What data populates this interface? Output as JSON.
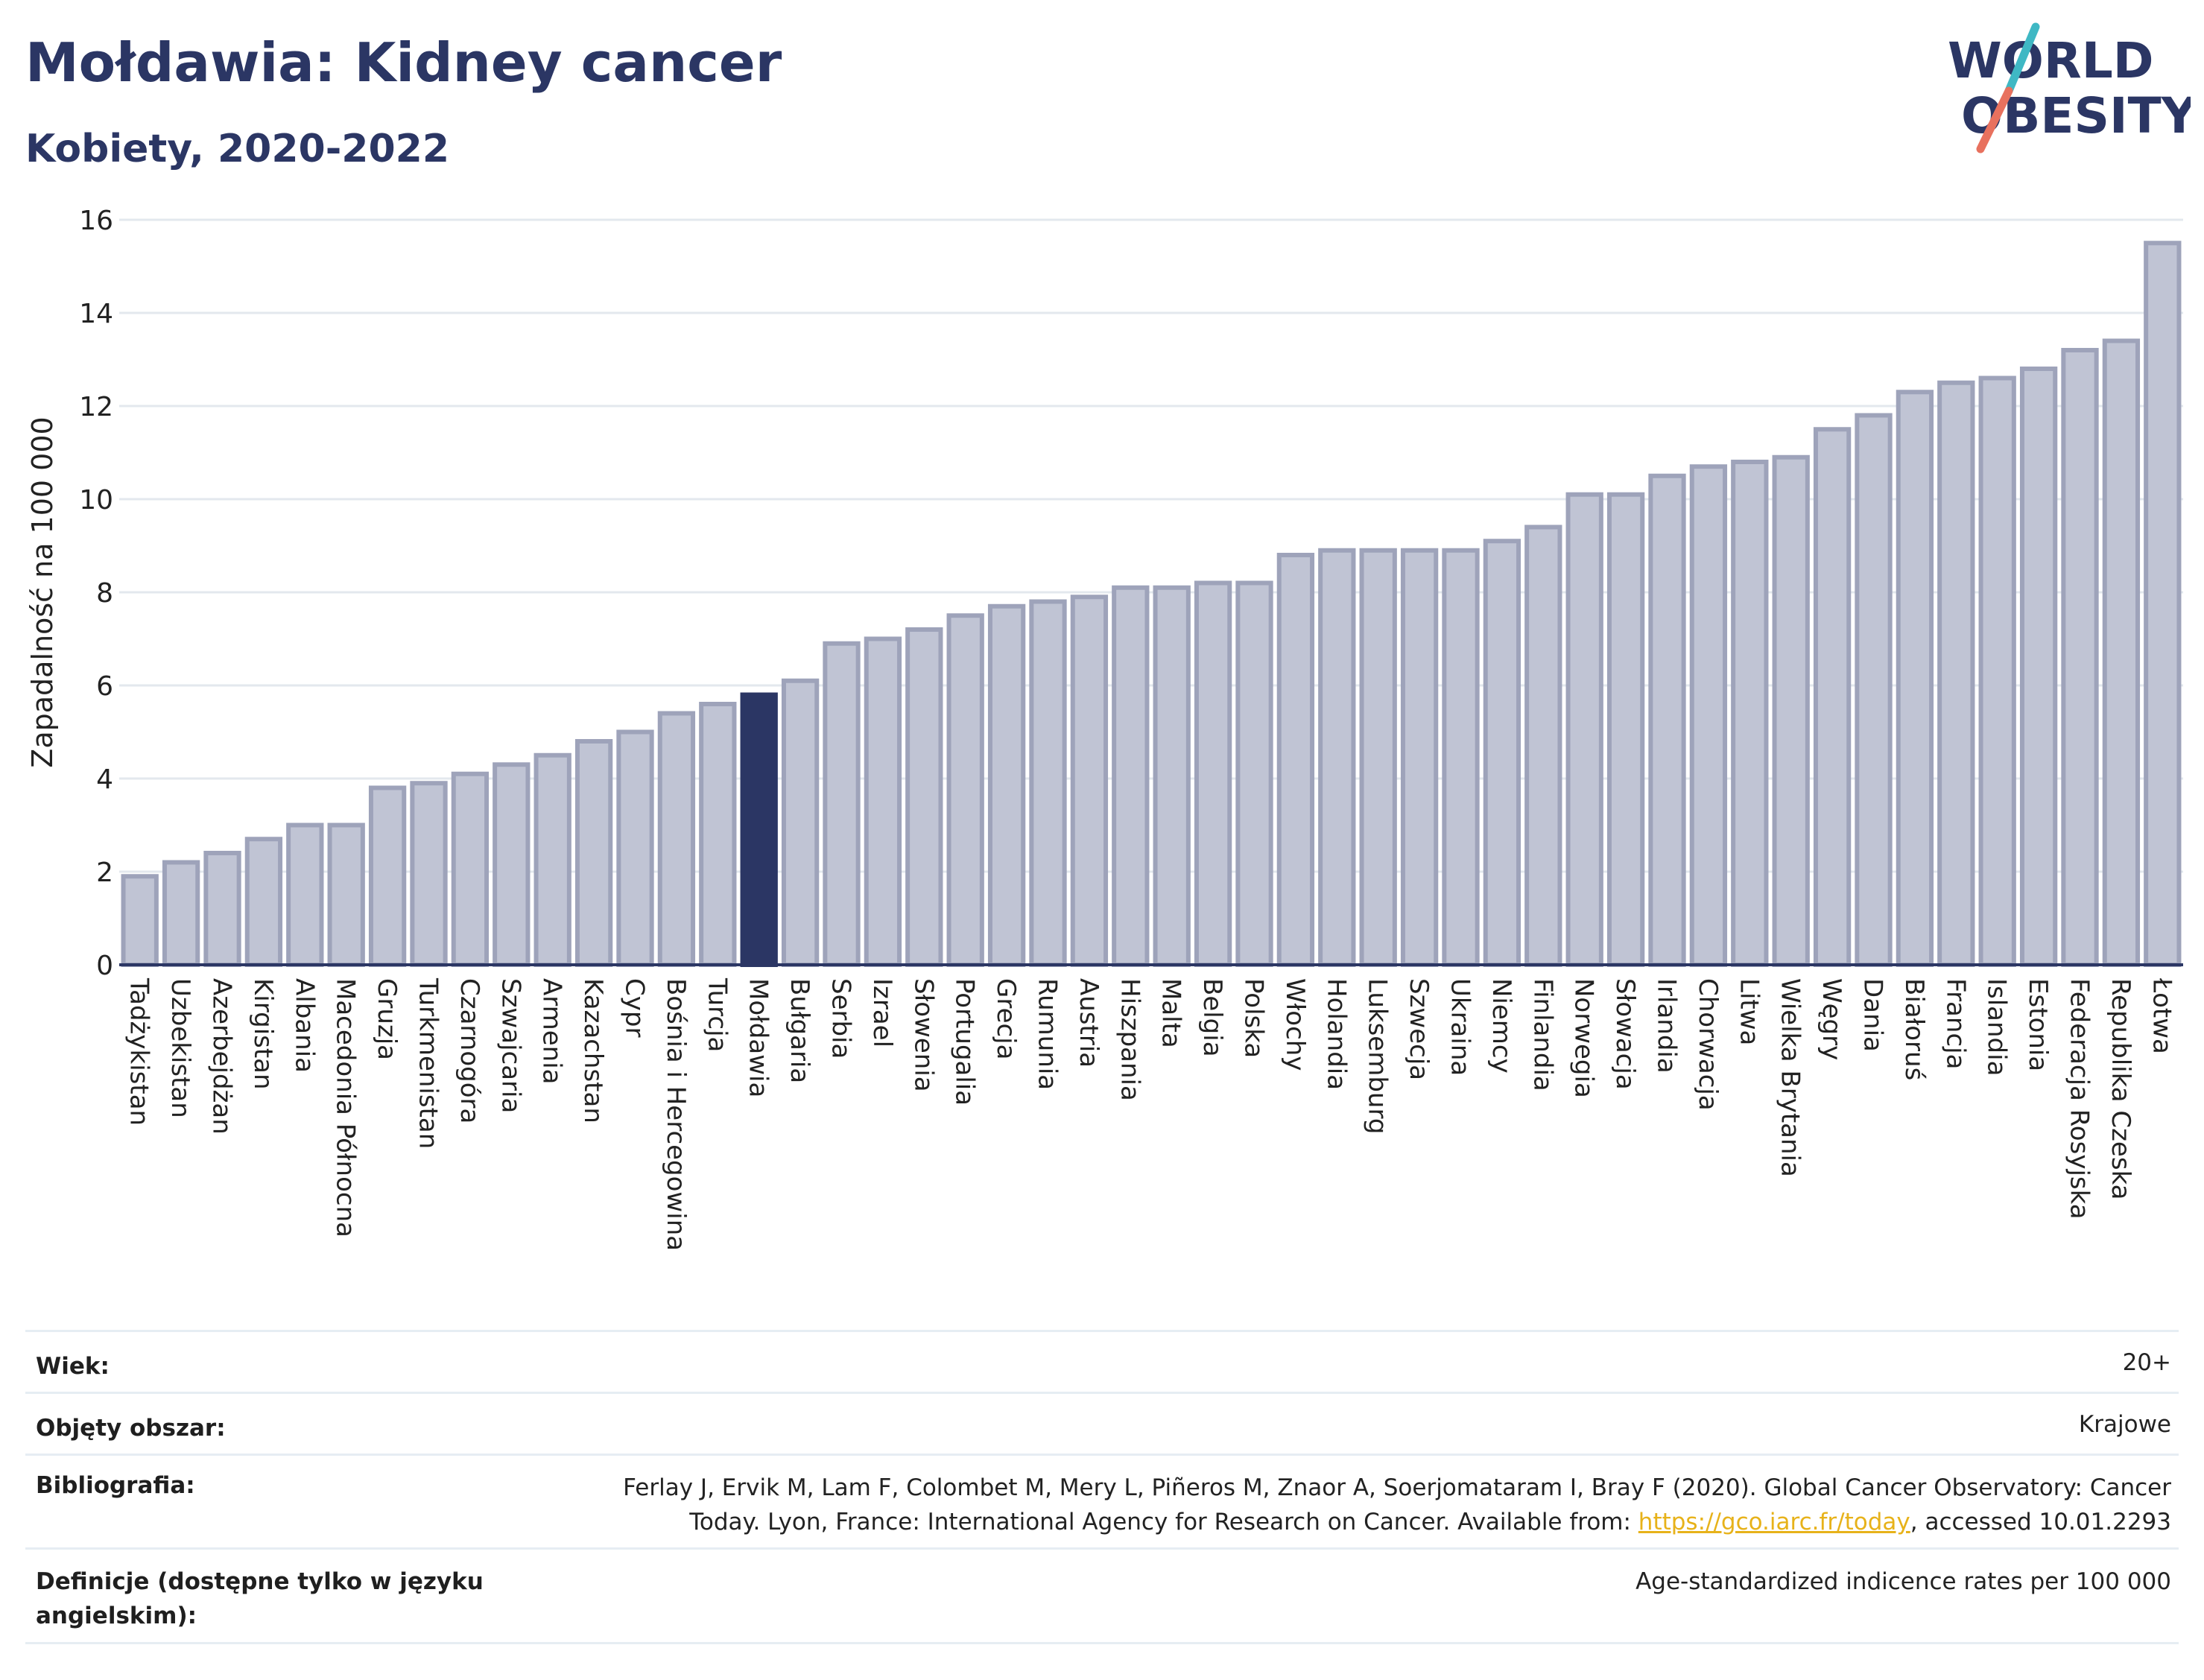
{
  "header": {
    "title": "Mołdawia: Kidney cancer",
    "subtitle": "Kobiety, 2020-2022",
    "logo_line1": "WORLD",
    "logo_line2": "OBESITY"
  },
  "colors": {
    "bar": "#c0c4d4",
    "bar_stroke": "#9ea3ba",
    "highlight": "#2b3664",
    "text": "#2b3664",
    "logo_slash_top": "#3fb8c4",
    "logo_slash_bottom": "#e8715e"
  },
  "chart_data": {
    "type": "bar",
    "ylabel": "Zapadalność na 100 000",
    "ylim": [
      0,
      16
    ],
    "yticks": [
      0,
      2,
      4,
      6,
      8,
      10,
      12,
      14,
      16
    ],
    "grid": true,
    "highlight": "Mołdawia",
    "categories": [
      "Tadżykistan",
      "Uzbekistan",
      "Azerbejdżan",
      "Kirgistan",
      "Albania",
      "Macedonia Północna",
      "Gruzja",
      "Turkmenistan",
      "Czarnogóra",
      "Szwajcaria",
      "Armenia",
      "Kazachstan",
      "Cypr",
      "Bośnia i Hercegowina",
      "Turcja",
      "Mołdawia",
      "Bułgaria",
      "Serbia",
      "Izrael",
      "Słowenia",
      "Portugalia",
      "Grecja",
      "Rumunia",
      "Austria",
      "Hiszpania",
      "Malta",
      "Belgia",
      "Polska",
      "Włochy",
      "Holandia",
      "Luksemburg",
      "Szwecja",
      "Ukraina",
      "Niemcy",
      "Finlandia",
      "Norwegia",
      "Słowacja",
      "Irlandia",
      "Chorwacja",
      "Litwa",
      "Wielka Brytania",
      "Węgry",
      "Dania",
      "Białoruś",
      "Francja",
      "Islandia",
      "Estonia",
      "Federacja Rosyjska",
      "Republika Czeska",
      "Łotwa"
    ],
    "values": [
      1.9,
      2.2,
      2.4,
      2.7,
      3.0,
      3.0,
      3.8,
      3.9,
      4.1,
      4.3,
      4.5,
      4.8,
      5.0,
      5.4,
      5.6,
      5.8,
      6.1,
      6.9,
      7.0,
      7.2,
      7.5,
      7.7,
      7.8,
      7.9,
      8.1,
      8.1,
      8.2,
      8.2,
      8.8,
      8.9,
      8.9,
      8.9,
      8.9,
      9.1,
      9.4,
      10.1,
      10.1,
      10.5,
      10.7,
      10.8,
      10.9,
      11.5,
      11.8,
      12.3,
      12.5,
      12.6,
      12.8,
      13.2,
      13.4,
      15.5
    ]
  },
  "info": {
    "age_label": "Wiek:",
    "age_value": "20+",
    "coverage_label": "Objęty obszar:",
    "coverage_value": "Krajowe",
    "biblio_label": "Bibliografia:",
    "biblio_line1": "Ferlay J, Ervik M, Lam F, Colombet M, Mery L, Piñeros M, Znaor A, Soerjomataram I, Bray F (2020). Global Cancer Observatory: Cancer",
    "biblio_line2_pre": "Today. Lyon, France: International Agency for Research on Cancer. Available from: ",
    "biblio_link": "https://gco.iarc.fr/today",
    "biblio_line2_post": ", accessed 10.01.2293",
    "def_label_line1": "Definicje (dostępne tylko w języku",
    "def_label_line2": "angielskim):",
    "def_value": "Age-standardized indicence rates per 100 000"
  }
}
